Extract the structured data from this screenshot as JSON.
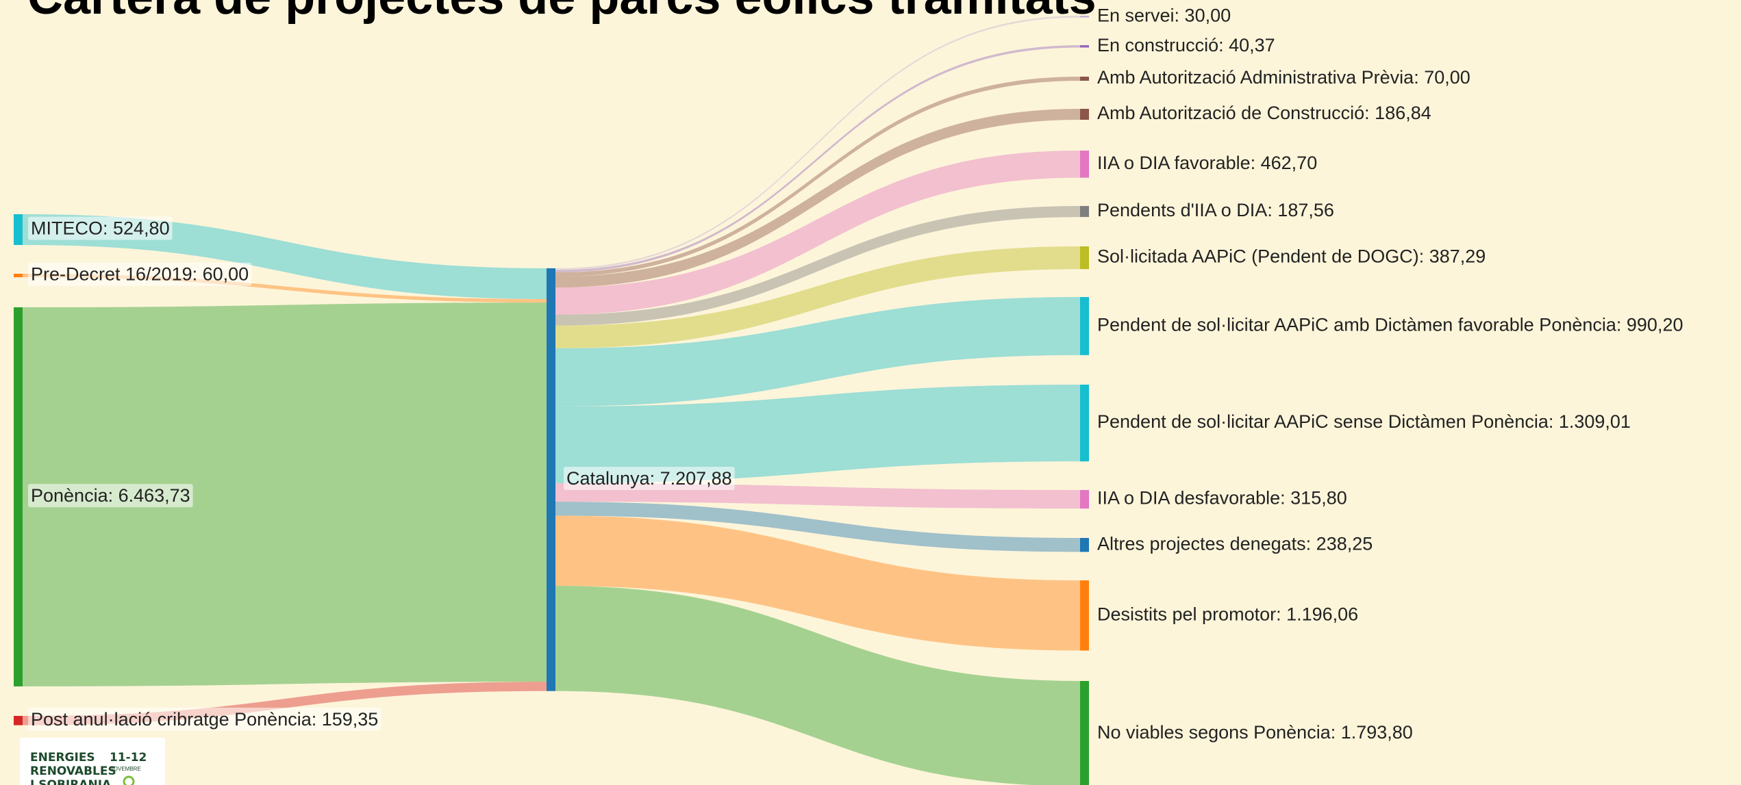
{
  "chart_data": {
    "type": "sankey",
    "title": "Cartera de projectes de parcs eòlics tramitats",
    "nodes": [
      {
        "label": "MITECO: 524,80",
        "value": 524.8,
        "color": "#17becf"
      },
      {
        "label": "Pre-Decret 16/2019: 60,00",
        "value": 60.0,
        "color": "#ff7f0e"
      },
      {
        "label": "Ponència: 6.463,73",
        "value": 6463.73,
        "color": "#2ca02c"
      },
      {
        "label": "Post anul·lació cribratge Ponència: 159,35",
        "value": 159.35,
        "color": "#d62728"
      },
      {
        "label": "Catalunya: 7.207,88",
        "value": 7207.88,
        "color": "#1f77b4"
      },
      {
        "label": "En servei: 30,00",
        "value": 30.0,
        "color": "#c5b0d5"
      },
      {
        "label": "En construcció: 40,37",
        "value": 40.37,
        "color": "#9467bd"
      },
      {
        "label": "Amb Autorització Administrativa Prèvia: 70,00",
        "value": 70.0,
        "color": "#8c564b"
      },
      {
        "label": "Amb Autorització de Construcció: 186,84",
        "value": 186.84,
        "color": "#8c564b"
      },
      {
        "label": "IIA o DIA favorable: 462,70",
        "value": 462.7,
        "color": "#e377c2"
      },
      {
        "label": "Pendents d'IIA o DIA: 187,56",
        "value": 187.56,
        "color": "#7f7f7f"
      },
      {
        "label": "Sol·licitada AAPiC (Pendent de DOGC): 387,29",
        "value": 387.29,
        "color": "#bcbd22"
      },
      {
        "label": "Pendent de sol·licitar AAPiC amb Dictàmen favorable Ponència: 990,20",
        "value": 990.2,
        "color": "#17becf"
      },
      {
        "label": "Pendent de sol·licitar AAPiC sense Dictàmen Ponència: 1.309,01",
        "value": 1309.01,
        "color": "#17becf"
      },
      {
        "label": "IIA o DIA desfavorable: 315,80",
        "value": 315.8,
        "color": "#e377c2"
      },
      {
        "label": "Altres projectes denegats: 238,25",
        "value": 238.25,
        "color": "#1f77b4"
      },
      {
        "label": "Desistits pel promotor: 1.196,06",
        "value": 1196.06,
        "color": "#ff7f0e"
      },
      {
        "label": "No viables segons Ponència: 1.793,80",
        "value": 1793.8,
        "color": "#2ca02c"
      }
    ],
    "links": [
      {
        "source": 0,
        "target": 4,
        "value": 524.8
      },
      {
        "source": 1,
        "target": 4,
        "value": 60.0
      },
      {
        "source": 2,
        "target": 4,
        "value": 6463.73
      },
      {
        "source": 3,
        "target": 4,
        "value": 159.35
      },
      {
        "source": 4,
        "target": 5,
        "value": 30.0
      },
      {
        "source": 4,
        "target": 6,
        "value": 40.37
      },
      {
        "source": 4,
        "target": 7,
        "value": 70.0
      },
      {
        "source": 4,
        "target": 8,
        "value": 186.84
      },
      {
        "source": 4,
        "target": 9,
        "value": 462.7
      },
      {
        "source": 4,
        "target": 10,
        "value": 187.56
      },
      {
        "source": 4,
        "target": 11,
        "value": 387.29
      },
      {
        "source": 4,
        "target": 12,
        "value": 990.2
      },
      {
        "source": 4,
        "target": 13,
        "value": 1309.01
      },
      {
        "source": 4,
        "target": 14,
        "value": 315.8
      },
      {
        "source": 4,
        "target": 15,
        "value": 238.25
      },
      {
        "source": 4,
        "target": 16,
        "value": 1196.06
      },
      {
        "source": 4,
        "target": 17,
        "value": 1793.8
      }
    ]
  },
  "logo": {
    "lines": [
      "ENERGIES",
      "RENOVABLES",
      "I SOBIRANIA"
    ],
    "date": "11-12",
    "month": "NOVEMBRE"
  }
}
